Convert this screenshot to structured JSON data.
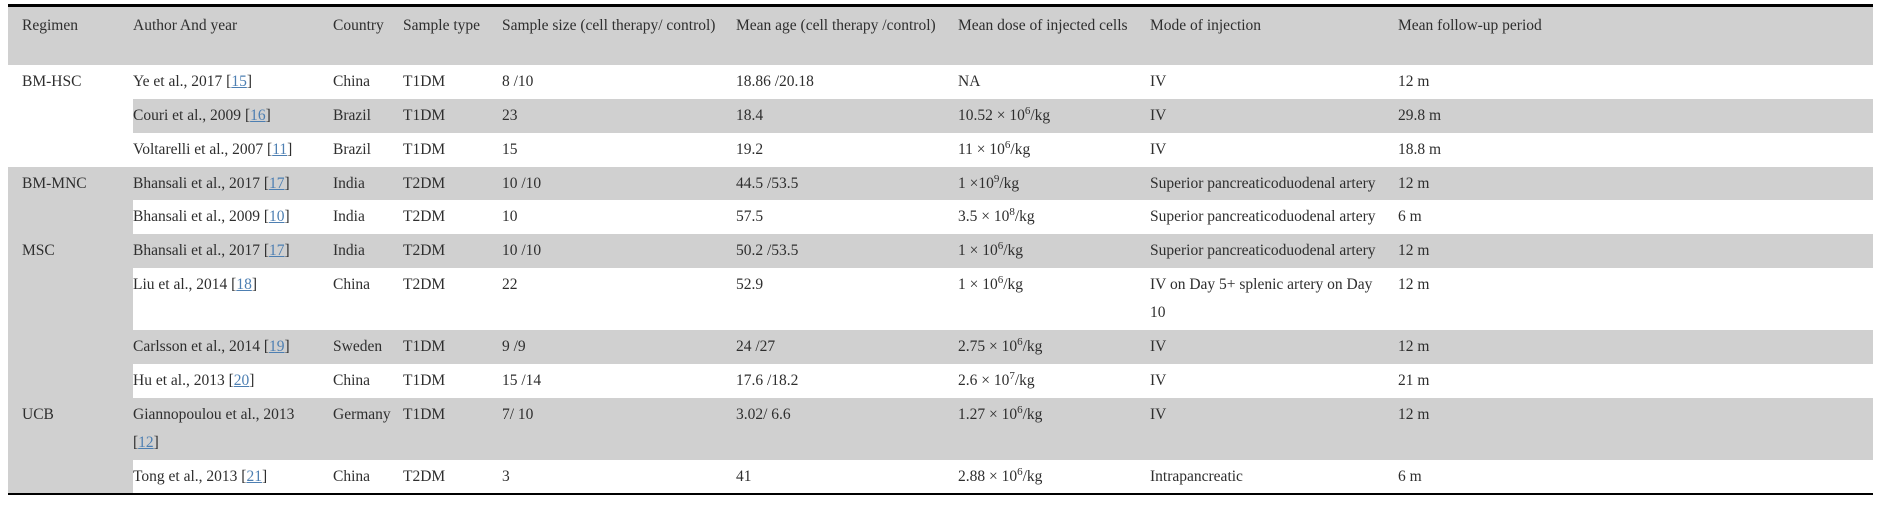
{
  "citation": {
    "open": "[",
    "close": "]"
  },
  "colors": {
    "stripe": "#d0d0d0",
    "link": "#4d7fb2",
    "border": "#000000",
    "text": "#2e2e2e"
  },
  "table": {
    "columns": [
      "Regimen",
      "Author And year",
      "Country",
      "Sample type",
      "Sample size (cell therapy/ control)",
      "Mean age (cell therapy /control)",
      "Mean dose of injected cells",
      "Mode of injection",
      "Mean follow-up period"
    ],
    "rows": [
      {
        "regimen": "BM-HSC",
        "author": "Ye et al., 2017",
        "ref": "15",
        "country": "China",
        "sample_type": "T1DM",
        "sample_size": "8 /10",
        "mean_age": "18.86 /20.18",
        "dose_base": "NA",
        "dose_exp": "",
        "dose_suffix": "",
        "mode": "IV",
        "follow_up": "12 m"
      },
      {
        "author": "Couri et al., 2009",
        "ref": "16",
        "country": "Brazil",
        "sample_type": "T1DM",
        "sample_size": "23",
        "mean_age": "18.4",
        "dose_base": "10.52 × 10",
        "dose_exp": "6",
        "dose_suffix": "/kg",
        "mode": "IV",
        "follow_up": "29.8 m"
      },
      {
        "author": "Voltarelli et al., 2007",
        "ref": "11",
        "country": "Brazil",
        "sample_type": "T1DM",
        "sample_size": "15",
        "mean_age": "19.2",
        "dose_base": "11 × 10",
        "dose_exp": "6",
        "dose_suffix": "/kg",
        "mode": "IV",
        "follow_up": "18.8 m"
      },
      {
        "regimen": "BM-MNC",
        "author": "Bhansali et al., 2017",
        "ref": "17",
        "country": "India",
        "sample_type": "T2DM",
        "sample_size": "10 /10",
        "mean_age": "44.5 /53.5",
        "dose_base": "1 ×10",
        "dose_exp": "9",
        "dose_suffix": "/kg",
        "mode": "Superior pancreaticoduodenal artery",
        "follow_up": "12 m"
      },
      {
        "author": "Bhansali et al., 2009",
        "ref": "10",
        "country": "India",
        "sample_type": "T2DM",
        "sample_size": "10",
        "mean_age": "57.5",
        "dose_base": "3.5 ×  10",
        "dose_exp": "8",
        "dose_suffix": "/kg",
        "mode": "Superior pancreaticoduodenal artery",
        "follow_up": "6 m"
      },
      {
        "regimen": "MSC",
        "author": "Bhansali et al., 2017",
        "ref": "17",
        "country": "India",
        "sample_type": "T2DM",
        "sample_size": "10 /10",
        "mean_age": "50.2 /53.5",
        "dose_base": "1 × 10",
        "dose_exp": "6",
        "dose_suffix": "/kg",
        "mode": "Superior pancreaticoduodenal artery",
        "follow_up": "12 m"
      },
      {
        "author": "Liu et al., 2014",
        "ref": "18",
        "country": "China",
        "sample_type": "T2DM",
        "sample_size": "22",
        "mean_age": "52.9",
        "dose_base": "1 × 10",
        "dose_exp": "6",
        "dose_suffix": "/kg",
        "mode": "IV on Day 5+ splenic artery on Day 10",
        "follow_up": "12 m"
      },
      {
        "author": "Carlsson et al., 2014",
        "ref": "19",
        "country": "Sweden",
        "sample_type": "T1DM",
        "sample_size": "9 /9",
        "mean_age": "24 /27",
        "dose_base": "2.75  × 10",
        "dose_exp": "6",
        "dose_suffix": "/kg",
        "mode": "IV",
        "follow_up": "12 m"
      },
      {
        "author": "Hu et al., 2013",
        "ref": "20",
        "country": "China",
        "sample_type": "T1DM",
        "sample_size": "15 /14",
        "mean_age": "17.6 /18.2",
        "dose_base": "2.6 × 10",
        "dose_exp": "7",
        "dose_suffix": "/kg",
        "mode": "IV",
        "follow_up": "21 m"
      },
      {
        "regimen": "UCB",
        "author": "Giannopoulou et al., 2013",
        "ref": "12",
        "country": "Germany",
        "sample_type": "T1DM",
        "sample_size": "7/ 10",
        "mean_age": "3.02/ 6.6",
        "dose_base": "1.27 × 10",
        "dose_exp": "6",
        "dose_suffix": "/kg",
        "mode": "IV",
        "follow_up": "12 m"
      },
      {
        "author": "Tong et al., 2013",
        "ref": "21",
        "country": "China",
        "sample_type": "T2DM",
        "sample_size": "3",
        "mean_age": "41",
        "dose_base": "2.88 × 10",
        "dose_exp": "6",
        "dose_suffix": "/kg",
        "mode": "Intrapancreatic",
        "follow_up": "6 m"
      }
    ]
  }
}
